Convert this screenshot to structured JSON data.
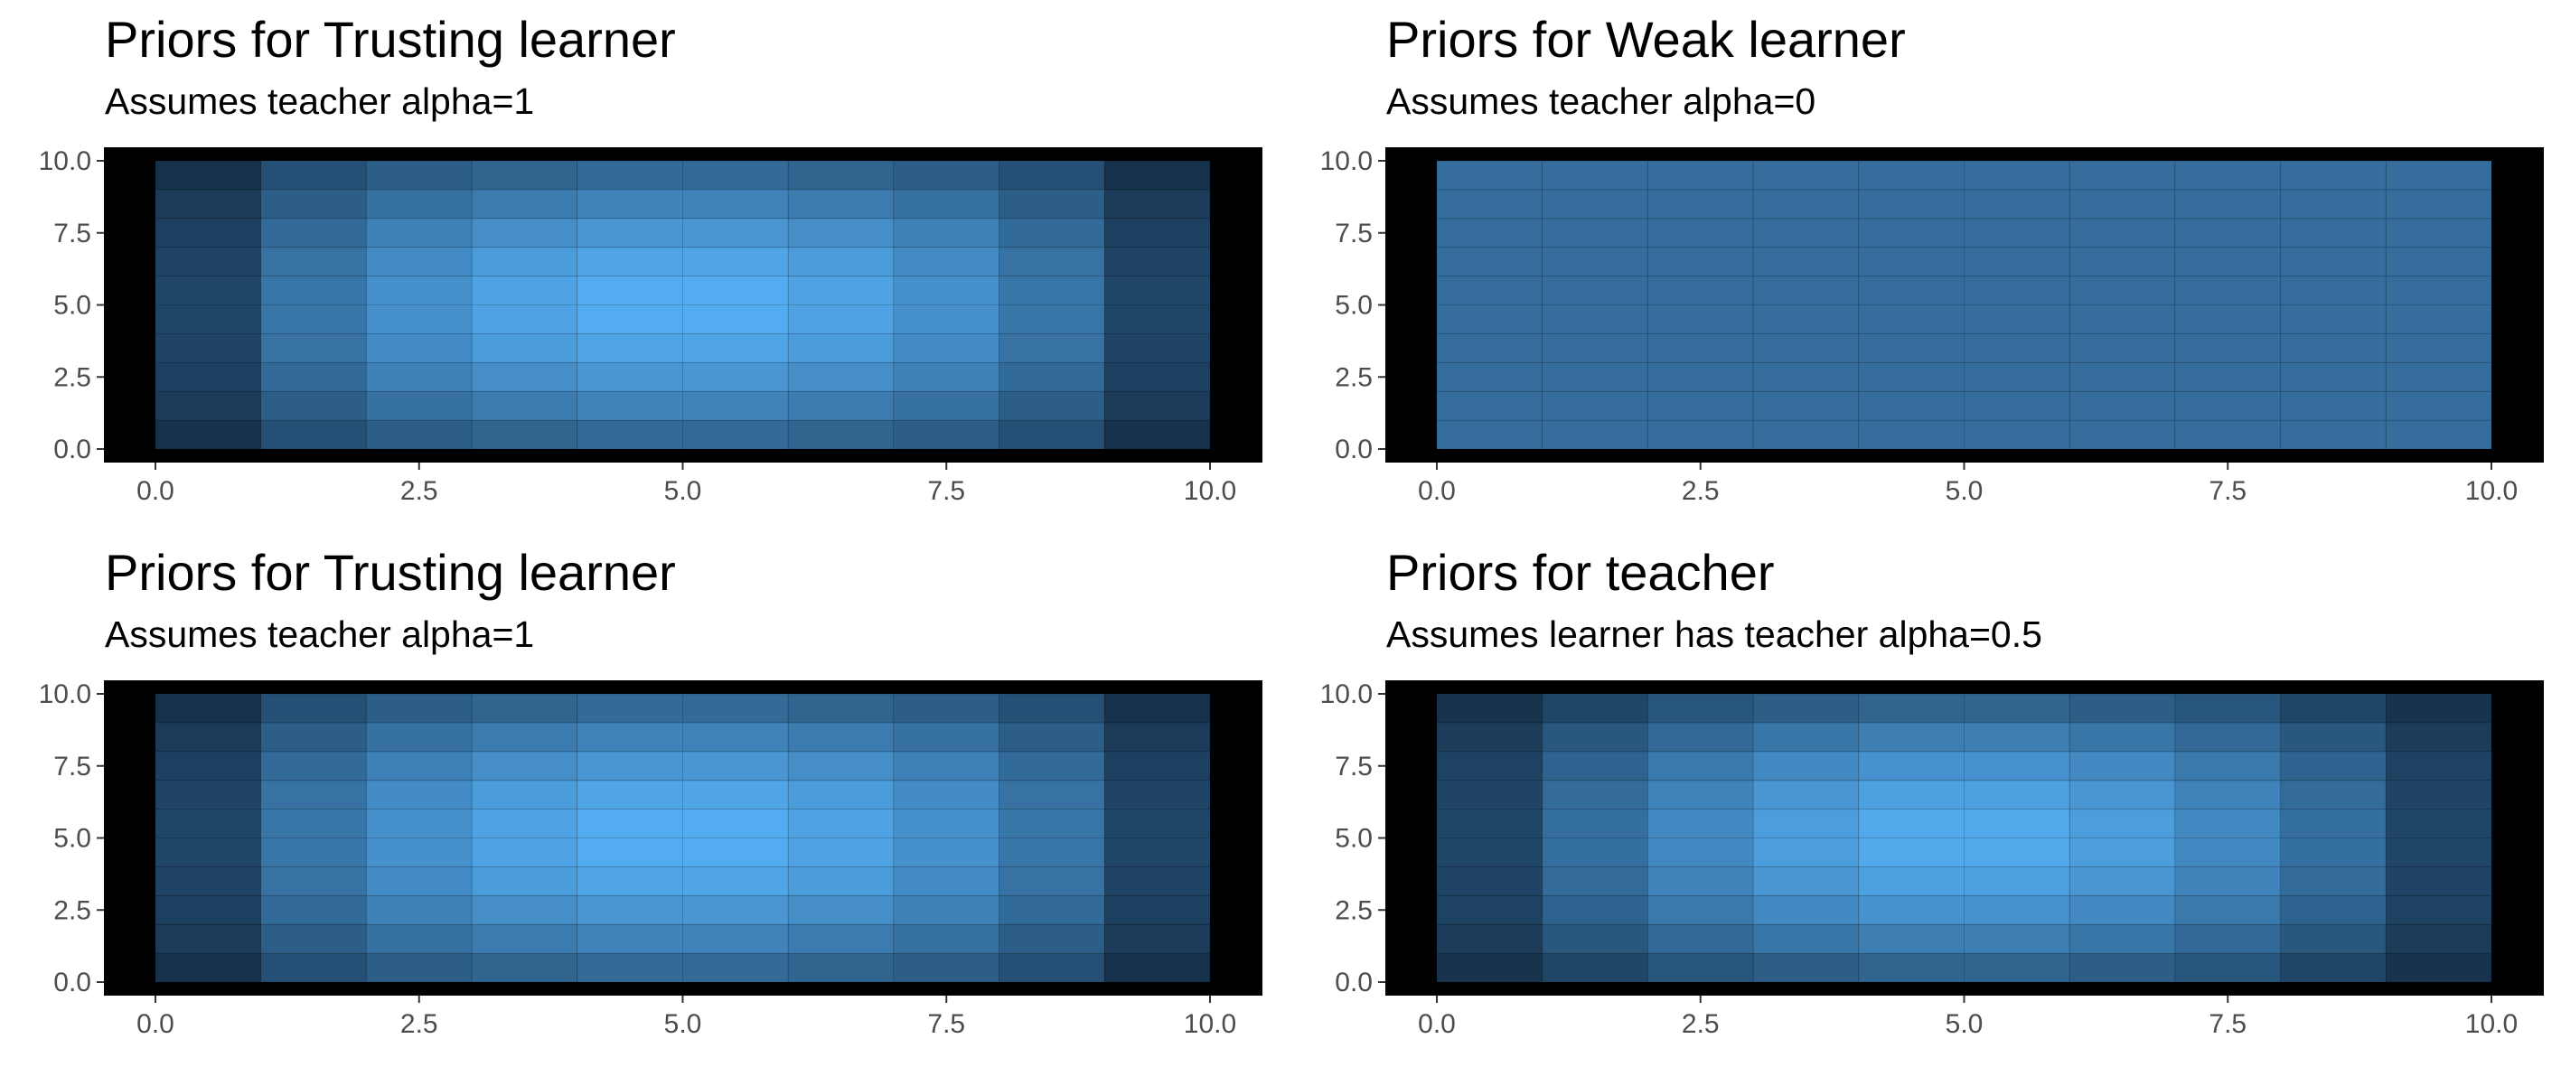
{
  "colors": {
    "panel_background": "#000000",
    "low": "#132b43",
    "high": "#56b1f7",
    "tick_text": "#4d4d4d",
    "tick_mark": "#333333"
  },
  "chart_data": [
    {
      "type": "heatmap",
      "title": "Priors for Trusting learner",
      "subtitle": "Assumes teacher alpha=1",
      "xlabel": "",
      "ylabel": "",
      "xlim": [
        0,
        10
      ],
      "ylim": [
        0,
        10
      ],
      "x_ticks": [
        "0.0",
        "2.5",
        "5.0",
        "7.5",
        "10.0"
      ],
      "y_ticks": [
        "0.0",
        "2.5",
        "5.0",
        "7.5",
        "10.0"
      ],
      "grid": false,
      "legend": "none",
      "cell_size": 1,
      "x_centers": [
        0.5,
        1.5,
        2.5,
        3.5,
        4.5,
        5.5,
        6.5,
        7.5,
        8.5,
        9.5
      ],
      "y_centers": [
        0.5,
        1.5,
        2.5,
        3.5,
        4.5,
        5.5,
        6.5,
        7.5,
        8.5,
        9.5
      ],
      "values_note_rows": "rows from y=0.5 (bottom) to y=9.5 (top); relative intensity 0-1",
      "values": [
        [
          0.05,
          0.27,
          0.38,
          0.43,
          0.47,
          0.47,
          0.43,
          0.38,
          0.27,
          0.05
        ],
        [
          0.12,
          0.38,
          0.52,
          0.6,
          0.66,
          0.66,
          0.6,
          0.52,
          0.38,
          0.12
        ],
        [
          0.16,
          0.47,
          0.64,
          0.74,
          0.8,
          0.8,
          0.74,
          0.64,
          0.47,
          0.16
        ],
        [
          0.19,
          0.53,
          0.72,
          0.84,
          0.91,
          0.91,
          0.84,
          0.72,
          0.53,
          0.19
        ],
        [
          0.2,
          0.56,
          0.76,
          0.89,
          0.96,
          0.96,
          0.89,
          0.76,
          0.56,
          0.2
        ],
        [
          0.2,
          0.56,
          0.76,
          0.89,
          0.96,
          0.96,
          0.89,
          0.76,
          0.56,
          0.2
        ],
        [
          0.19,
          0.53,
          0.72,
          0.84,
          0.91,
          0.91,
          0.84,
          0.72,
          0.53,
          0.19
        ],
        [
          0.16,
          0.47,
          0.64,
          0.74,
          0.8,
          0.8,
          0.74,
          0.64,
          0.47,
          0.16
        ],
        [
          0.12,
          0.38,
          0.52,
          0.6,
          0.66,
          0.66,
          0.6,
          0.52,
          0.38,
          0.12
        ],
        [
          0.05,
          0.27,
          0.38,
          0.43,
          0.47,
          0.47,
          0.43,
          0.38,
          0.27,
          0.05
        ]
      ]
    },
    {
      "type": "heatmap",
      "title": "Priors for Weak learner",
      "subtitle": "Assumes teacher alpha=0",
      "xlabel": "",
      "ylabel": "",
      "xlim": [
        0,
        10
      ],
      "ylim": [
        0,
        10
      ],
      "x_ticks": [
        "0.0",
        "2.5",
        "5.0",
        "7.5",
        "10.0"
      ],
      "y_ticks": [
        "0.0",
        "2.5",
        "5.0",
        "7.5",
        "10.0"
      ],
      "grid": false,
      "legend": "none",
      "cell_size": 1,
      "x_centers": [
        0.5,
        1.5,
        2.5,
        3.5,
        4.5,
        5.5,
        6.5,
        7.5,
        8.5,
        9.5
      ],
      "y_centers": [
        0.5,
        1.5,
        2.5,
        3.5,
        4.5,
        5.5,
        6.5,
        7.5,
        8.5,
        9.5
      ],
      "values_note_rows": "uniform prior; relative intensity 0-1",
      "values": [
        [
          0.5,
          0.5,
          0.5,
          0.5,
          0.5,
          0.5,
          0.5,
          0.5,
          0.5,
          0.5
        ],
        [
          0.5,
          0.5,
          0.5,
          0.5,
          0.5,
          0.5,
          0.5,
          0.5,
          0.5,
          0.5
        ],
        [
          0.5,
          0.5,
          0.5,
          0.5,
          0.5,
          0.5,
          0.5,
          0.5,
          0.5,
          0.5
        ],
        [
          0.5,
          0.5,
          0.5,
          0.5,
          0.5,
          0.5,
          0.5,
          0.5,
          0.5,
          0.5
        ],
        [
          0.5,
          0.5,
          0.5,
          0.5,
          0.5,
          0.5,
          0.5,
          0.5,
          0.5,
          0.5
        ],
        [
          0.5,
          0.5,
          0.5,
          0.5,
          0.5,
          0.5,
          0.5,
          0.5,
          0.5,
          0.5
        ],
        [
          0.5,
          0.5,
          0.5,
          0.5,
          0.5,
          0.5,
          0.5,
          0.5,
          0.5,
          0.5
        ],
        [
          0.5,
          0.5,
          0.5,
          0.5,
          0.5,
          0.5,
          0.5,
          0.5,
          0.5,
          0.5
        ],
        [
          0.5,
          0.5,
          0.5,
          0.5,
          0.5,
          0.5,
          0.5,
          0.5,
          0.5,
          0.5
        ],
        [
          0.5,
          0.5,
          0.5,
          0.5,
          0.5,
          0.5,
          0.5,
          0.5,
          0.5,
          0.5
        ]
      ]
    },
    {
      "type": "heatmap",
      "title": "Priors for Trusting learner",
      "subtitle": "Assumes teacher alpha=1",
      "xlabel": "",
      "ylabel": "",
      "xlim": [
        0,
        10
      ],
      "ylim": [
        0,
        10
      ],
      "x_ticks": [
        "0.0",
        "2.5",
        "5.0",
        "7.5",
        "10.0"
      ],
      "y_ticks": [
        "0.0",
        "2.5",
        "5.0",
        "7.5",
        "10.0"
      ],
      "grid": false,
      "legend": "none",
      "cell_size": 1,
      "x_centers": [
        0.5,
        1.5,
        2.5,
        3.5,
        4.5,
        5.5,
        6.5,
        7.5,
        8.5,
        9.5
      ],
      "y_centers": [
        0.5,
        1.5,
        2.5,
        3.5,
        4.5,
        5.5,
        6.5,
        7.5,
        8.5,
        9.5
      ],
      "values_note_rows": "rows from y=0.5 (bottom) to y=9.5 (top); relative intensity 0-1",
      "values": [
        [
          0.05,
          0.27,
          0.38,
          0.43,
          0.47,
          0.47,
          0.43,
          0.38,
          0.27,
          0.05
        ],
        [
          0.12,
          0.38,
          0.52,
          0.6,
          0.66,
          0.66,
          0.6,
          0.52,
          0.38,
          0.12
        ],
        [
          0.16,
          0.47,
          0.64,
          0.74,
          0.8,
          0.8,
          0.74,
          0.64,
          0.47,
          0.16
        ],
        [
          0.19,
          0.53,
          0.72,
          0.84,
          0.91,
          0.91,
          0.84,
          0.72,
          0.53,
          0.19
        ],
        [
          0.2,
          0.56,
          0.76,
          0.89,
          0.96,
          0.96,
          0.89,
          0.76,
          0.56,
          0.2
        ],
        [
          0.2,
          0.56,
          0.76,
          0.89,
          0.96,
          0.96,
          0.89,
          0.76,
          0.56,
          0.2
        ],
        [
          0.19,
          0.53,
          0.72,
          0.84,
          0.91,
          0.91,
          0.84,
          0.72,
          0.53,
          0.19
        ],
        [
          0.16,
          0.47,
          0.64,
          0.74,
          0.8,
          0.8,
          0.74,
          0.64,
          0.47,
          0.16
        ],
        [
          0.12,
          0.38,
          0.52,
          0.6,
          0.66,
          0.66,
          0.6,
          0.52,
          0.38,
          0.12
        ],
        [
          0.05,
          0.27,
          0.38,
          0.43,
          0.47,
          0.47,
          0.43,
          0.38,
          0.27,
          0.05
        ]
      ]
    },
    {
      "type": "heatmap",
      "title": "Priors for teacher",
      "subtitle": "Assumes learner has teacher alpha=0.5",
      "xlabel": "",
      "ylabel": "",
      "xlim": [
        0,
        10
      ],
      "ylim": [
        0,
        10
      ],
      "x_ticks": [
        "0.0",
        "2.5",
        "5.0",
        "7.5",
        "10.0"
      ],
      "y_ticks": [
        "0.0",
        "2.5",
        "5.0",
        "7.5",
        "10.0"
      ],
      "grid": false,
      "legend": "none",
      "cell_size": 1,
      "x_centers": [
        0.5,
        1.5,
        2.5,
        3.5,
        4.5,
        5.5,
        6.5,
        7.5,
        8.5,
        9.5
      ],
      "y_centers": [
        0.5,
        1.5,
        2.5,
        3.5,
        4.5,
        5.5,
        6.5,
        7.5,
        8.5,
        9.5
      ],
      "values_note_rows": "rows from y=0.5 (bottom) to y=9.5 (top); relative intensity 0-1",
      "values": [
        [
          0.06,
          0.2,
          0.31,
          0.38,
          0.43,
          0.43,
          0.38,
          0.31,
          0.2,
          0.06
        ],
        [
          0.13,
          0.33,
          0.46,
          0.56,
          0.62,
          0.62,
          0.56,
          0.46,
          0.33,
          0.13
        ],
        [
          0.17,
          0.42,
          0.58,
          0.7,
          0.77,
          0.77,
          0.7,
          0.58,
          0.42,
          0.17
        ],
        [
          0.19,
          0.48,
          0.66,
          0.8,
          0.88,
          0.88,
          0.8,
          0.66,
          0.48,
          0.19
        ],
        [
          0.2,
          0.51,
          0.7,
          0.85,
          0.94,
          0.94,
          0.85,
          0.7,
          0.51,
          0.2
        ],
        [
          0.2,
          0.51,
          0.7,
          0.85,
          0.94,
          0.94,
          0.85,
          0.7,
          0.51,
          0.2
        ],
        [
          0.19,
          0.48,
          0.66,
          0.8,
          0.88,
          0.88,
          0.8,
          0.66,
          0.48,
          0.19
        ],
        [
          0.17,
          0.42,
          0.58,
          0.7,
          0.77,
          0.77,
          0.7,
          0.58,
          0.42,
          0.17
        ],
        [
          0.13,
          0.33,
          0.46,
          0.56,
          0.62,
          0.62,
          0.56,
          0.46,
          0.33,
          0.13
        ],
        [
          0.06,
          0.2,
          0.31,
          0.38,
          0.43,
          0.43,
          0.38,
          0.31,
          0.2,
          0.06
        ]
      ]
    }
  ]
}
